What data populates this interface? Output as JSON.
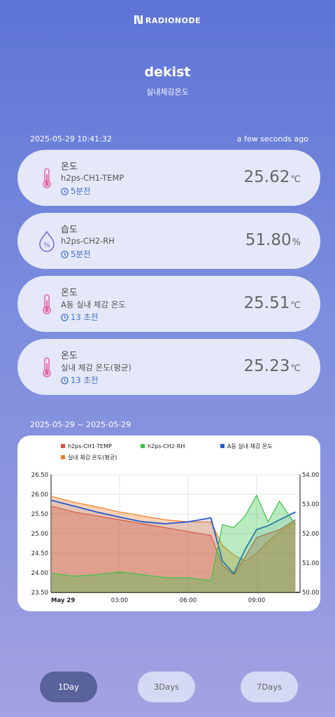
{
  "header": {
    "brand": "RADIONODE",
    "title": "dekist",
    "subtitle": "실내체감온도"
  },
  "status": {
    "timestamp": "2025-05-29 10:41:32",
    "updated": "a few seconds ago"
  },
  "cards": [
    {
      "kind": "온도",
      "channel": "h2ps-CH1-TEMP",
      "time": "5분전",
      "value": "25.62",
      "unit": "℃",
      "icon": "thermometer-icon"
    },
    {
      "kind": "습도",
      "channel": "h2ps-CH2-RH",
      "time": "5분전",
      "value": "51.80",
      "unit": "%",
      "icon": "humidity-drop-icon"
    },
    {
      "kind": "온도",
      "channel": "A동 실내 체감 온도",
      "time": "13 초전",
      "value": "25.51",
      "unit": "℃",
      "icon": "thermometer-icon"
    },
    {
      "kind": "온도",
      "channel": "실내 체감 온도(평균)",
      "time": "13 초전",
      "value": "25.23",
      "unit": "℃",
      "icon": "thermometer-icon"
    }
  ],
  "range": "2025-05-29 ~ 2025-05-29",
  "colors": {
    "ch1": "#e74c3c",
    "ch2": "#39c449",
    "a_dong": "#2458d4",
    "avg": "#f07d28"
  },
  "chart_data": {
    "type": "area",
    "x_ticks": [
      "May 29",
      "03:00",
      "06:00",
      "09:00"
    ],
    "y_left_ticks": [
      "26.50",
      "26.00",
      "25.50",
      "25.00",
      "24.50",
      "24.00",
      "23.50"
    ],
    "y_right_ticks": [
      "54.00",
      "53.00",
      "52.00",
      "51.00",
      "50.00"
    ],
    "ylim_left": [
      23.5,
      26.5
    ],
    "ylim_right": [
      50,
      54
    ],
    "x_hours": [
      0,
      1,
      2,
      3,
      4,
      5,
      6,
      7,
      7.5,
      8,
      8.5,
      9,
      9.5,
      10,
      10.7
    ],
    "series": [
      {
        "name": "h2ps-CH1-TEMP",
        "axis": "left",
        "values": [
          25.7,
          25.55,
          25.45,
          25.35,
          25.25,
          25.15,
          25.05,
          24.95,
          24.2,
          23.95,
          24.4,
          24.9,
          25.0,
          25.1,
          25.35
        ]
      },
      {
        "name": "h2ps-CH2-RH",
        "axis": "right",
        "values": [
          50.65,
          50.55,
          50.6,
          50.7,
          50.6,
          50.5,
          50.5,
          50.4,
          52.3,
          52.2,
          52.6,
          53.3,
          52.4,
          53.1,
          52.3
        ]
      },
      {
        "name": "A동 실내 체감 온도",
        "axis": "left",
        "values": [
          25.85,
          25.7,
          25.55,
          25.42,
          25.3,
          25.25,
          25.3,
          25.4,
          24.3,
          23.98,
          24.6,
          25.1,
          25.2,
          25.35,
          25.55
        ]
      },
      {
        "name": "실내 체감 온도(평균)",
        "axis": "left",
        "values": [
          25.95,
          25.8,
          25.68,
          25.55,
          25.45,
          25.35,
          25.3,
          25.3,
          24.7,
          24.45,
          24.3,
          24.5,
          24.8,
          25.05,
          25.3
        ]
      }
    ],
    "legend_position": "top",
    "grid": true
  },
  "ranges_buttons": {
    "day1": "1Day",
    "day3": "3Days",
    "day7": "7Days"
  }
}
